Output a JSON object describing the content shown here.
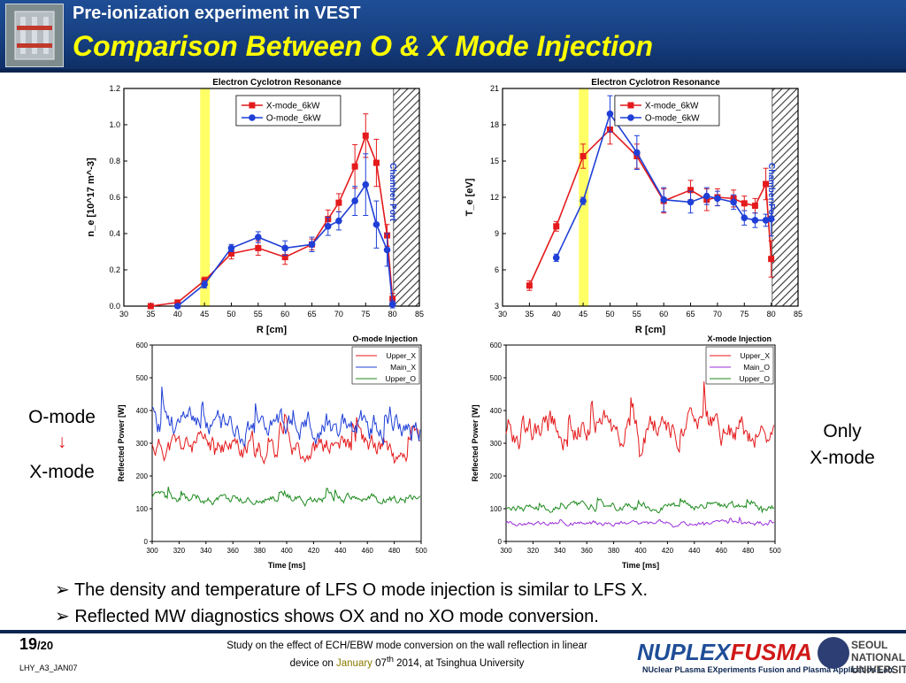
{
  "header": {
    "subtitle": "Pre-ionization experiment in VEST",
    "title": "Comparison Between O & X Mode Injection"
  },
  "side": {
    "left_top": "O-mode",
    "arrow": "↓",
    "left_bottom": "X-mode",
    "right_line1": "Only",
    "right_line2": "X-mode"
  },
  "bullets": [
    "The density and temperature of LFS O mode injection is similar to LFS X.",
    "Reflected MW diagnostics shows OX and no XO mode conversion."
  ],
  "footer": {
    "page": "19",
    "total": "/20",
    "doc_id": "LHY_A3_JAN07",
    "note_line1": "Study on the effect of ECH/EBW mode conversion on the wall reflection in linear",
    "note_line2_a": "device on ",
    "note_line2_month": "January",
    "note_line2_b": " 07",
    "note_line2_sup": "th",
    "note_line2_c": " 2014, at Tsinghua University",
    "brand_a": "NUPLEX",
    "brand_b": "FUSMA",
    "brand_sub": "NUclear PLasma EXperiments Fusion and Plasma Application Lab.",
    "univ_1": "SEOUL",
    "univ_2": "NATIONAL",
    "univ_3": "UNIVERSITY"
  },
  "colors": {
    "header": "#1f4e97",
    "title": "#ffff00",
    "x_mode": "#e41a1c",
    "o_mode": "#1f3fd6",
    "upper_o": "#1e8a1e",
    "main_o": "#9b30d9",
    "ecr_band": "#ffff66",
    "chamber_port": "#1f3fd6"
  },
  "chart_data": [
    {
      "type": "line",
      "title": "Electron Cyclotron Resonance",
      "xlabel": "R [cm]",
      "ylabel": "n_e [10^17 m^-3]",
      "xlim": [
        30,
        85
      ],
      "ylim": [
        0.0,
        1.2
      ],
      "xticks": [
        30,
        35,
        40,
        45,
        50,
        55,
        60,
        65,
        70,
        75,
        80,
        85
      ],
      "yticks": [
        "0.0",
        "0.2",
        "0.4",
        "0.6",
        "0.8",
        "1.0",
        "1.2"
      ],
      "ecr_band": [
        44.2,
        46.0
      ],
      "chamber_port": [
        80.2,
        85
      ],
      "port_label": "Chamber Port",
      "legend": [
        "X-mode_6kW",
        "O-mode_6kW"
      ],
      "series": [
        {
          "name": "X-mode_6kW",
          "x": [
            35,
            40,
            45,
            50,
            55,
            60,
            65,
            68,
            70,
            73,
            75,
            77,
            79,
            80
          ],
          "y": [
            0.0,
            0.02,
            0.14,
            0.29,
            0.32,
            0.27,
            0.34,
            0.48,
            0.57,
            0.77,
            0.94,
            0.79,
            0.39,
            0.04
          ],
          "err": [
            0.01,
            0.01,
            0.02,
            0.03,
            0.04,
            0.04,
            0.03,
            0.05,
            0.05,
            0.12,
            0.12,
            0.13,
            0.06,
            0.03
          ]
        },
        {
          "name": "O-mode_6kW",
          "x": [
            40,
            45,
            50,
            55,
            60,
            65,
            68,
            70,
            73,
            75,
            77,
            79,
            80
          ],
          "y": [
            0.0,
            0.12,
            0.32,
            0.38,
            0.32,
            0.34,
            0.44,
            0.47,
            0.58,
            0.67,
            0.45,
            0.31,
            0.01
          ],
          "err": [
            0.01,
            0.02,
            0.02,
            0.03,
            0.04,
            0.04,
            0.05,
            0.05,
            0.08,
            0.17,
            0.13,
            0.09,
            0.02
          ]
        }
      ]
    },
    {
      "type": "line",
      "title": "Electron Cyclotron Resonance",
      "xlabel": "R [cm]",
      "ylabel": "T_e [eV]",
      "xlim": [
        30,
        85
      ],
      "ylim": [
        3,
        21
      ],
      "xticks": [
        30,
        35,
        40,
        45,
        50,
        55,
        60,
        65,
        70,
        75,
        80,
        85
      ],
      "yticks": [
        "3",
        "6",
        "9",
        "12",
        "15",
        "18",
        "21"
      ],
      "ecr_band": [
        44.2,
        46.0
      ],
      "chamber_port": [
        80.2,
        85
      ],
      "port_label": "Chamber Port",
      "legend": [
        "X-mode_6kW",
        "O-mode_6kW"
      ],
      "series": [
        {
          "name": "X-mode_6kW",
          "x": [
            35,
            40,
            45,
            50,
            55,
            60,
            65,
            68,
            70,
            73,
            75,
            77,
            79,
            80
          ],
          "y": [
            4.7,
            9.6,
            15.4,
            17.6,
            15.4,
            11.7,
            12.6,
            11.8,
            12.0,
            11.9,
            11.5,
            11.3,
            13.1,
            6.9
          ],
          "err": [
            0.4,
            0.4,
            1.0,
            1.2,
            1.0,
            1.0,
            0.8,
            0.9,
            0.7,
            0.7,
            0.6,
            0.6,
            1.3,
            1.5
          ]
        },
        {
          "name": "O-mode_6kW",
          "x": [
            40,
            45,
            50,
            55,
            60,
            65,
            68,
            70,
            73,
            75,
            77,
            79,
            80
          ],
          "y": [
            7.0,
            11.7,
            18.9,
            15.7,
            11.8,
            11.6,
            12.1,
            11.9,
            11.6,
            10.3,
            10.1,
            10.1,
            10.2
          ],
          "err": [
            0.3,
            0.3,
            1.5,
            1.4,
            1.0,
            0.9,
            0.7,
            0.6,
            0.6,
            0.6,
            0.6,
            0.5,
            1.4
          ]
        }
      ]
    },
    {
      "type": "line",
      "title": "O-mode Injection",
      "xlabel": "Time [ms]",
      "ylabel": "Reflected Power [W]",
      "xlim": [
        300,
        500
      ],
      "ylim": [
        0,
        600
      ],
      "xticks": [
        300,
        320,
        340,
        360,
        380,
        400,
        420,
        440,
        460,
        480,
        500
      ],
      "yticks": [
        0,
        100,
        200,
        300,
        400,
        500,
        600
      ],
      "legend": [
        "Upper_X",
        "Main_X",
        "Upper_O"
      ],
      "series": [
        {
          "name": "Upper_X",
          "mean": 290,
          "amp": 55,
          "seed": 11
        },
        {
          "name": "Main_X",
          "mean": 355,
          "amp": 65,
          "seed": 23
        },
        {
          "name": "Upper_O",
          "mean": 130,
          "amp": 22,
          "seed": 37
        }
      ]
    },
    {
      "type": "line",
      "title": "X-mode Injection",
      "xlabel": "Time [ms]",
      "ylabel": "Reflected Power [W]",
      "xlim": [
        300,
        500
      ],
      "ylim": [
        0,
        600
      ],
      "xticks": [
        300,
        320,
        340,
        360,
        380,
        400,
        420,
        440,
        460,
        480,
        500
      ],
      "yticks": [
        0,
        100,
        200,
        300,
        400,
        500,
        600
      ],
      "legend": [
        "Upper_X",
        "Main_O",
        "Upper_O"
      ],
      "series": [
        {
          "name": "Upper_X",
          "mean": 340,
          "amp": 70,
          "seed": 53
        },
        {
          "name": "Main_O",
          "mean": 55,
          "amp": 10,
          "seed": 67
        },
        {
          "name": "Upper_O",
          "mean": 105,
          "amp": 18,
          "seed": 79
        }
      ]
    }
  ]
}
